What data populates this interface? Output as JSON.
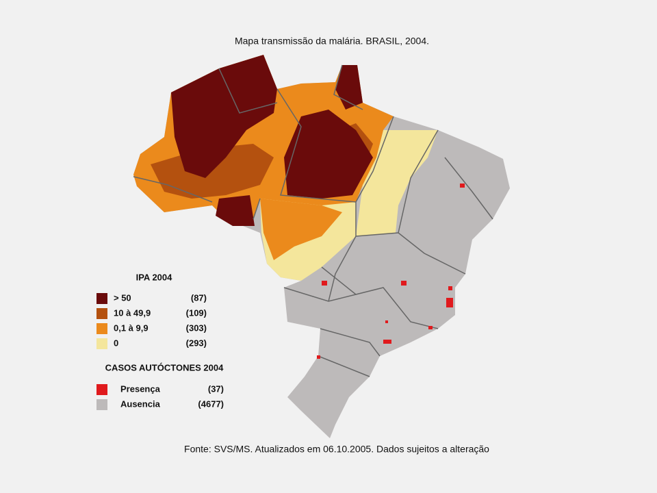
{
  "title": "Mapa transmissão da malária. BRASIL, 2004.",
  "ipa_legend": {
    "title": "IPA 2004",
    "items": [
      {
        "label": "> 50",
        "count": "(87)",
        "color": "#6a0b0b"
      },
      {
        "label": "10  à 49,9",
        "count": "(109)",
        "color": "#b4510f"
      },
      {
        "label": "0,1 à   9,9",
        "count": "(303)",
        "color": "#eb8a1c"
      },
      {
        "label": "0",
        "count": "(293)",
        "color": "#f4e69c"
      }
    ]
  },
  "cases_legend": {
    "title": "CASOS AUTÓCTONES 2004",
    "items": [
      {
        "label": "Presença",
        "count": "(37)",
        "color": "#e01a1d"
      },
      {
        "label": "Ausencia",
        "count": "(4677)",
        "color": "#bdbaba"
      }
    ]
  },
  "source": "Fonte: SVS/MS. Atualizados em  06.10.2005. Dados sujeitos a alteração"
}
